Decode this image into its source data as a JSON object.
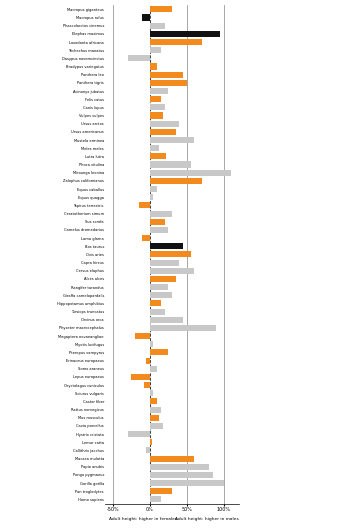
{
  "chart_data": {
    "type": "bar",
    "orientation": "horizontal",
    "grid": true,
    "categories": [
      "Macropus giganteus",
      "Macropus rufus",
      "Phascolarctos cinereus",
      "Elephas maximus",
      "Loxodonta africana",
      "Trichechus manatus",
      "Dasypus novemcinctus",
      "Bradypus variegatus",
      "Panthera leo",
      "Panthera tigris",
      "Acinonyx jubatus",
      "Felis catus",
      "Canis lupus",
      "Vulpes vulpes",
      "Ursus arctos",
      "Ursus americanus",
      "Mustela erminea",
      "Meles meles",
      "Lutra lutra",
      "Phoca vitulina",
      "Mirounga leonina",
      "Zalophus californianus",
      "Equus caballus",
      "Equus quagga",
      "Tapirus terrestris",
      "Ceratotherium simum",
      "Sus scrofa",
      "Camelus dromedarius",
      "Lama glama",
      "Bos taurus",
      "Ovis aries",
      "Capra hircus",
      "Cervus elaphus",
      "Alces alces",
      "Rangifer tarandus",
      "Giraffa camelopardalis",
      "Hippopotamus amphibius",
      "Tursiops truncatus",
      "Orcinus orca",
      "Physeter macrocephalus",
      "Megaptera novaeangliae",
      "Myotis lucifugus",
      "Pteropus vampyrus",
      "Erinaceus europaeus",
      "Sorex araneus",
      "Lepus europaeus",
      "Oryctolagus cuniculus",
      "Sciurus vulgaris",
      "Castor fiber",
      "Rattus norvegicus",
      "Mus musculus",
      "Cavia porcellus",
      "Hystrix cristata",
      "Lemur catta",
      "Callithrix jacchus",
      "Macaca mulatta",
      "Papio anubis",
      "Pongo pygmaeus",
      "Gorilla gorilla",
      "Pan troglodytes",
      "Homo sapiens"
    ],
    "values": [
      30,
      -10,
      20,
      95,
      70,
      15,
      -30,
      10,
      45,
      50,
      25,
      15,
      20,
      18,
      40,
      35,
      60,
      12,
      22,
      55,
      110,
      70,
      10,
      5,
      -15,
      30,
      20,
      25,
      -10,
      45,
      55,
      40,
      60,
      35,
      25,
      30,
      15,
      20,
      45,
      90,
      -20,
      5,
      25,
      -5,
      10,
      -25,
      -8,
      5,
      10,
      15,
      12,
      18,
      -30,
      3,
      -5,
      60,
      80,
      85,
      100,
      30,
      15
    ],
    "colors": [
      "#f28a1e",
      "#111111",
      "#c8c8c8",
      "#111111",
      "#f28a1e",
      "#c8c8c8",
      "#c8c8c8",
      "#f28a1e",
      "#f28a1e",
      "#f28a1e",
      "#c8c8c8",
      "#f28a1e",
      "#c8c8c8",
      "#f28a1e",
      "#c8c8c8",
      "#f28a1e",
      "#c8c8c8",
      "#c8c8c8",
      "#f28a1e",
      "#c8c8c8",
      "#c8c8c8",
      "#f28a1e",
      "#c8c8c8",
      "#c8c8c8",
      "#f28a1e",
      "#c8c8c8",
      "#f28a1e",
      "#c8c8c8",
      "#f28a1e",
      "#111111",
      "#f28a1e",
      "#c8c8c8",
      "#c8c8c8",
      "#f28a1e",
      "#c8c8c8",
      "#c8c8c8",
      "#f28a1e",
      "#c8c8c8",
      "#c8c8c8",
      "#c8c8c8",
      "#f28a1e",
      "#c8c8c8",
      "#f28a1e",
      "#f28a1e",
      "#c8c8c8",
      "#f28a1e",
      "#f28a1e",
      "#c8c8c8",
      "#f28a1e",
      "#c8c8c8",
      "#f28a1e",
      "#c8c8c8",
      "#c8c8c8",
      "#f28a1e",
      "#c8c8c8",
      "#f28a1e",
      "#c8c8c8",
      "#c8c8c8",
      "#c8c8c8",
      "#f28a1e",
      "#c8c8c8"
    ],
    "xlim": [
      -60,
      120
    ],
    "xticks": [
      {
        "value": -50,
        "label": "-50%"
      },
      {
        "value": 0,
        "label": "0%"
      },
      {
        "value": 50,
        "label": "50%"
      },
      {
        "value": 100,
        "label": "100%"
      }
    ],
    "annotations": [
      "Adult height: higher in females",
      "Adult height: higher in males"
    ]
  }
}
